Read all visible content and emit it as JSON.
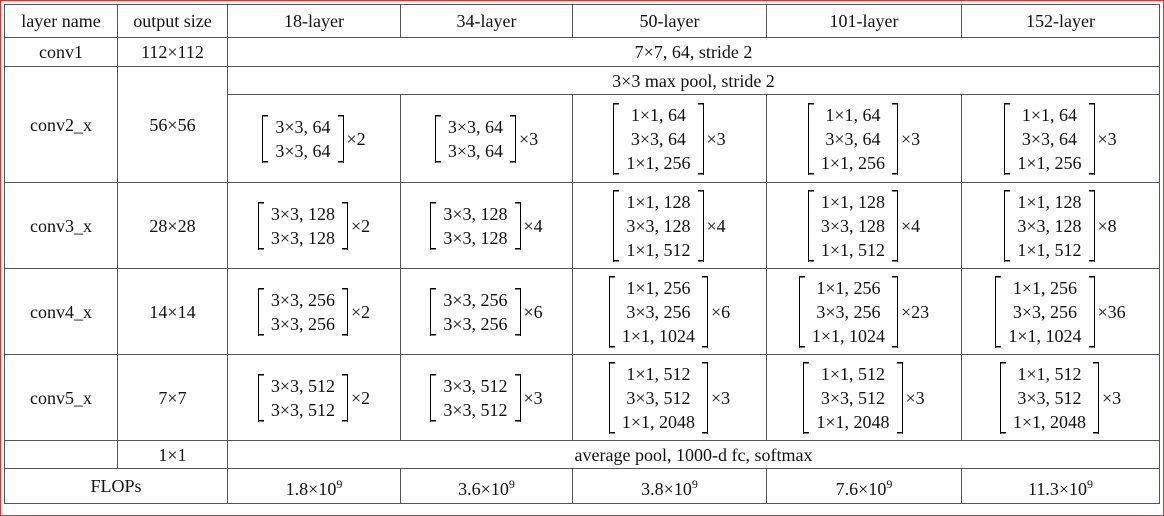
{
  "table": {
    "header": [
      "layer name",
      "output size",
      "18-layer",
      "34-layer",
      "50-layer",
      "101-layer",
      "152-layer"
    ],
    "conv1": {
      "name": "conv1",
      "output": "112×112",
      "spec": "7×7, 64, stride 2"
    },
    "pool": "3×3 max pool, stride 2",
    "stages": [
      {
        "name": "conv2_x",
        "output": "56×56",
        "blocks": [
          {
            "lines": [
              "3×3, 64",
              "3×3, 64"
            ],
            "repeat": "×2"
          },
          {
            "lines": [
              "3×3, 64",
              "3×3, 64"
            ],
            "repeat": "×3"
          },
          {
            "lines": [
              "1×1, 64",
              "3×3, 64",
              "1×1, 256"
            ],
            "repeat": "×3"
          },
          {
            "lines": [
              "1×1, 64",
              "3×3, 64",
              "1×1, 256"
            ],
            "repeat": "×3"
          },
          {
            "lines": [
              "1×1, 64",
              "3×3, 64",
              "1×1, 256"
            ],
            "repeat": "×3"
          }
        ]
      },
      {
        "name": "conv3_x",
        "output": "28×28",
        "blocks": [
          {
            "lines": [
              "3×3, 128",
              "3×3, 128"
            ],
            "repeat": "×2"
          },
          {
            "lines": [
              "3×3, 128",
              "3×3, 128"
            ],
            "repeat": "×4"
          },
          {
            "lines": [
              "1×1, 128",
              "3×3, 128",
              "1×1, 512"
            ],
            "repeat": "×4"
          },
          {
            "lines": [
              "1×1, 128",
              "3×3, 128",
              "1×1, 512"
            ],
            "repeat": "×4"
          },
          {
            "lines": [
              "1×1, 128",
              "3×3, 128",
              "1×1, 512"
            ],
            "repeat": "×8"
          }
        ]
      },
      {
        "name": "conv4_x",
        "output": "14×14",
        "blocks": [
          {
            "lines": [
              "3×3, 256",
              "3×3, 256"
            ],
            "repeat": "×2"
          },
          {
            "lines": [
              "3×3, 256",
              "3×3, 256"
            ],
            "repeat": "×6"
          },
          {
            "lines": [
              "1×1, 256",
              "3×3, 256",
              "1×1, 1024"
            ],
            "repeat": "×6"
          },
          {
            "lines": [
              "1×1, 256",
              "3×3, 256",
              "1×1, 1024"
            ],
            "repeat": "×23"
          },
          {
            "lines": [
              "1×1, 256",
              "3×3, 256",
              "1×1, 1024"
            ],
            "repeat": "×36"
          }
        ]
      },
      {
        "name": "conv5_x",
        "output": "7×7",
        "blocks": [
          {
            "lines": [
              "3×3, 512",
              "3×3, 512"
            ],
            "repeat": "×2"
          },
          {
            "lines": [
              "3×3, 512",
              "3×3, 512"
            ],
            "repeat": "×3"
          },
          {
            "lines": [
              "1×1, 512",
              "3×3, 512",
              "1×1, 2048"
            ],
            "repeat": "×3"
          },
          {
            "lines": [
              "1×1, 512",
              "3×3, 512",
              "1×1, 2048"
            ],
            "repeat": "×3"
          },
          {
            "lines": [
              "1×1, 512",
              "3×3, 512",
              "1×1, 2048"
            ],
            "repeat": "×3"
          }
        ]
      }
    ],
    "final": {
      "output": "1×1",
      "spec": "average pool, 1000-d fc, softmax"
    },
    "flops": {
      "label": "FLOPs",
      "values": [
        {
          "base": "1.8×10",
          "exponent": "9"
        },
        {
          "base": "3.6×10",
          "exponent": "9"
        },
        {
          "base": "3.8×10",
          "exponent": "9"
        },
        {
          "base": "7.6×10",
          "exponent": "9"
        },
        {
          "base": "11.3×10",
          "exponent": "9"
        }
      ]
    }
  }
}
